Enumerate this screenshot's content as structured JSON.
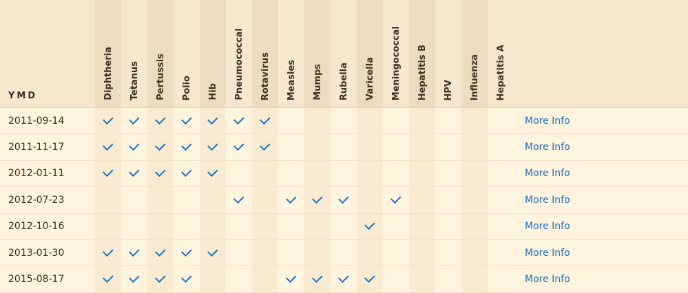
{
  "table": {
    "date_header": "YMD",
    "vaccines": [
      "Diphtheria",
      "Tetanus",
      "Pertussis",
      "Polio",
      "Hib",
      "Pneumococcal",
      "Rotavirus",
      "Measles",
      "Mumps",
      "Rubella",
      "Varicella",
      "Meningococcal",
      "Hepatitis B",
      "HPV",
      "Influenza",
      "Hepatitis A"
    ],
    "link_label": "More Info",
    "rows": [
      {
        "date": "2011-09-14",
        "given": [
          1,
          1,
          1,
          1,
          1,
          1,
          1,
          0,
          0,
          0,
          0,
          0,
          0,
          0,
          0,
          0
        ]
      },
      {
        "date": "2011-11-17",
        "given": [
          1,
          1,
          1,
          1,
          1,
          1,
          1,
          0,
          0,
          0,
          0,
          0,
          0,
          0,
          0,
          0
        ]
      },
      {
        "date": "2012-01-11",
        "given": [
          1,
          1,
          1,
          1,
          1,
          0,
          0,
          0,
          0,
          0,
          0,
          0,
          0,
          0,
          0,
          0
        ]
      },
      {
        "date": "2012-07-23",
        "given": [
          0,
          0,
          0,
          0,
          0,
          1,
          0,
          1,
          1,
          1,
          0,
          1,
          0,
          0,
          0,
          0
        ]
      },
      {
        "date": "2012-10-16",
        "given": [
          0,
          0,
          0,
          0,
          0,
          0,
          0,
          0,
          0,
          0,
          1,
          0,
          0,
          0,
          0,
          0
        ]
      },
      {
        "date": "2013-01-30",
        "given": [
          1,
          1,
          1,
          1,
          1,
          0,
          0,
          0,
          0,
          0,
          0,
          0,
          0,
          0,
          0,
          0
        ]
      },
      {
        "date": "2015-08-17",
        "given": [
          1,
          1,
          1,
          1,
          0,
          0,
          0,
          1,
          1,
          1,
          1,
          0,
          0,
          0,
          0,
          0
        ]
      }
    ]
  },
  "colors": {
    "header_bg": "#f6e8cf",
    "row_bg": "#fff4de",
    "check": "#1d70c0",
    "link": "#1a6fc4"
  },
  "icons": {
    "given": "check-icon"
  }
}
